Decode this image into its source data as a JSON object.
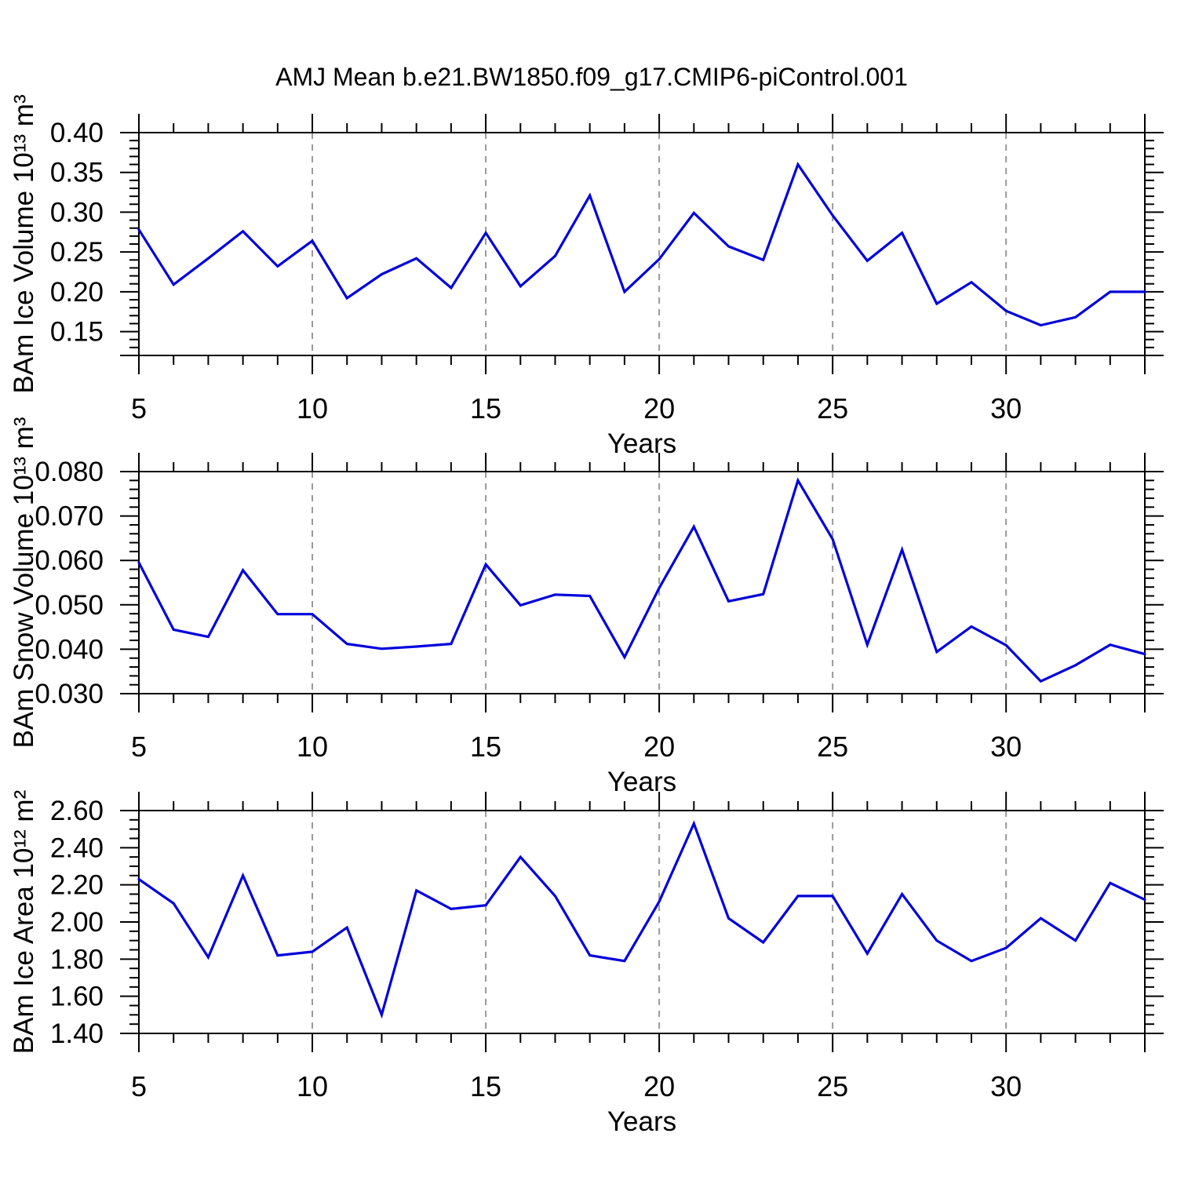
{
  "title": "AMJ Mean b.e21.BW1850.f09_g17.CMIP6-piControl.001",
  "chart_data": {
    "type": "line",
    "title": "AMJ Mean b.e21.BW1850.f09_g17.CMIP6-piControl.001",
    "line_color": "#0000dd",
    "gridline_color": "#999999",
    "axis_color": "#000000",
    "legend": "none",
    "x": {
      "label": "Years",
      "range": [
        5,
        34
      ],
      "major_ticks": [
        5,
        10,
        15,
        20,
        25,
        30
      ],
      "tick_labels": [
        "5",
        "10",
        "15",
        "20",
        "25",
        "30"
      ],
      "minor_step": 1,
      "gridlines": [
        10,
        15,
        20,
        25,
        30
      ],
      "grid_style": "dashed-vertical"
    },
    "years": [
      5,
      6,
      7,
      8,
      9,
      10,
      11,
      12,
      13,
      14,
      15,
      16,
      17,
      18,
      19,
      20,
      21,
      22,
      23,
      24,
      25,
      26,
      27,
      28,
      29,
      30,
      31,
      32,
      33,
      34
    ],
    "panels": [
      {
        "name": "ice-volume",
        "ylabel": "BAm Ice Volume 10¹³ m³",
        "ylim": [
          0.12,
          0.4
        ],
        "ytick_values": [
          0.15,
          0.2,
          0.25,
          0.3,
          0.35,
          0.4
        ],
        "ytick_labels": [
          "0.15",
          "0.20",
          "0.25",
          "0.30",
          "0.35",
          "0.40"
        ],
        "minor_step": 0.01,
        "values": [
          0.278,
          0.209,
          0.242,
          0.276,
          0.232,
          0.264,
          0.192,
          0.222,
          0.242,
          0.205,
          0.274,
          0.207,
          0.245,
          0.321,
          0.2,
          0.241,
          0.299,
          0.257,
          0.24,
          0.36,
          0.296,
          0.239,
          0.274,
          0.185,
          0.212,
          0.176,
          0.158,
          0.168,
          0.2,
          0.2
        ]
      },
      {
        "name": "snow-volume",
        "ylabel": "BAm Snow Volume 10¹³ m³",
        "ylim": [
          0.03,
          0.08
        ],
        "ytick_values": [
          0.03,
          0.04,
          0.05,
          0.06,
          0.07,
          0.08
        ],
        "ytick_labels": [
          "0.030",
          "0.040",
          "0.050",
          "0.060",
          "0.070",
          "0.080"
        ],
        "minor_step": 0.002,
        "values": [
          0.0595,
          0.0444,
          0.0428,
          0.0578,
          0.0479,
          0.0479,
          0.0412,
          0.0401,
          0.0406,
          0.0412,
          0.0591,
          0.0499,
          0.0523,
          0.052,
          0.0382,
          0.0538,
          0.0676,
          0.0508,
          0.0524,
          0.078,
          0.0648,
          0.041,
          0.0624,
          0.0394,
          0.0451,
          0.0409,
          0.0328,
          0.0364,
          0.041,
          0.0389
        ]
      },
      {
        "name": "ice-area",
        "ylabel": "BAm Ice Area 10¹² m²",
        "ylim": [
          1.4,
          2.6
        ],
        "ytick_values": [
          1.4,
          1.6,
          1.8,
          2.0,
          2.2,
          2.4,
          2.6
        ],
        "ytick_labels": [
          "1.40",
          "1.60",
          "1.80",
          "2.00",
          "2.20",
          "2.40",
          "2.60"
        ],
        "minor_step": 0.05,
        "values": [
          2.23,
          2.1,
          1.81,
          2.25,
          1.82,
          1.84,
          1.97,
          1.5,
          2.17,
          2.07,
          2.09,
          2.35,
          2.14,
          1.82,
          1.79,
          2.11,
          2.53,
          2.02,
          1.89,
          2.14,
          2.14,
          1.83,
          2.15,
          1.9,
          1.79,
          1.86,
          2.02,
          1.9,
          2.21,
          2.12
        ]
      }
    ]
  }
}
